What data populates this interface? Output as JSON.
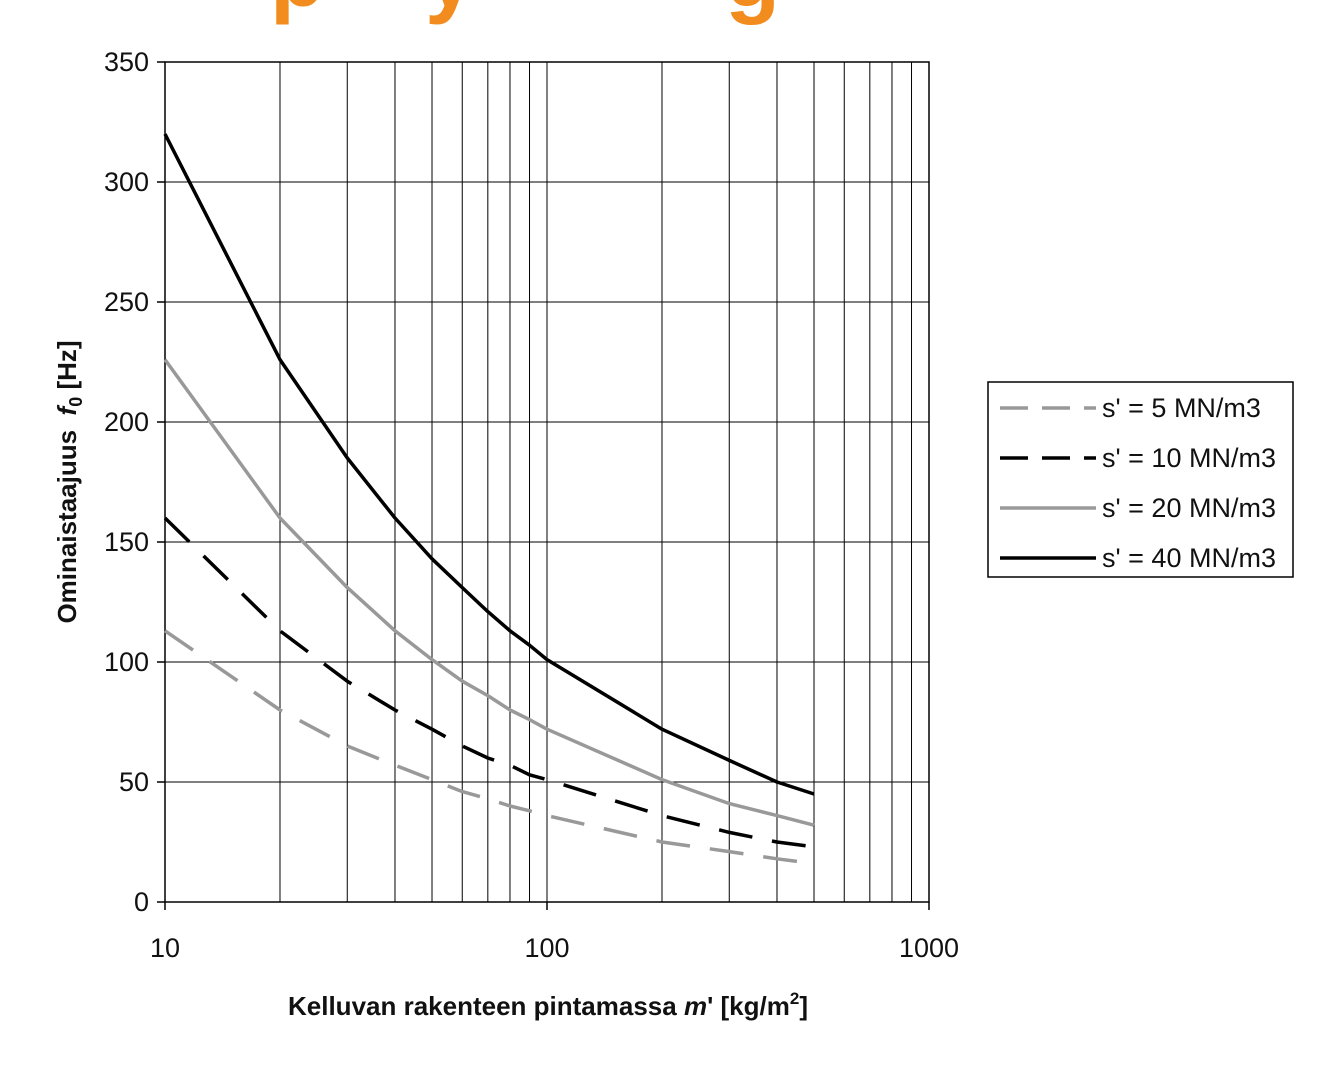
{
  "top_text": "p    y          g",
  "chart_data": {
    "type": "line",
    "x_scale": "log",
    "xlim": [
      10,
      1000
    ],
    "ylim": [
      0,
      350
    ],
    "x_ticks": [
      10,
      100,
      1000
    ],
    "x_tick_labels": [
      "10",
      "100",
      "1000"
    ],
    "y_ticks": [
      0,
      50,
      100,
      150,
      200,
      250,
      300,
      350
    ],
    "y_tick_labels": [
      "0",
      "50",
      "100",
      "150",
      "200",
      "250",
      "300",
      "350"
    ],
    "xlabel": "Kelluvan rakenteen pintamassa m' [kg/m2]",
    "xlabel_main": "Kelluvan rakenteen pintamassa ",
    "xlabel_var": "m",
    "xlabel_prime": "'",
    "xlabel_unit": " [kg/m",
    "xlabel_sup": "2",
    "xlabel_close": "]",
    "ylabel": "Ominaistaajuus f0 [Hz]",
    "ylabel_main": "Ominaistaajuus  ",
    "ylabel_var": "f",
    "ylabel_sub": "0",
    "ylabel_unit": " [Hz]",
    "grid": true,
    "legend_position": "right",
    "x": [
      10,
      20,
      30,
      40,
      50,
      60,
      70,
      80,
      90,
      100,
      200,
      300,
      400,
      500
    ],
    "series": [
      {
        "name": "s' = 5 MN/m3",
        "color": "#999999",
        "dash": "dashed",
        "values": [
          113,
          80,
          65,
          57,
          51,
          46,
          43,
          40,
          38,
          36,
          25,
          21,
          18,
          16
        ]
      },
      {
        "name": "s' = 10 MN/m3",
        "color": "#000000",
        "dash": "dashed",
        "values": [
          160,
          113,
          92,
          80,
          72,
          65,
          60,
          57,
          53,
          51,
          36,
          29,
          25,
          23
        ]
      },
      {
        "name": "s' = 20 MN/m3",
        "color": "#999999",
        "dash": "solid",
        "values": [
          226,
          160,
          131,
          113,
          101,
          92,
          86,
          80,
          76,
          72,
          51,
          41,
          36,
          32
        ]
      },
      {
        "name": "s' = 40 MN/m3",
        "color": "#000000",
        "dash": "solid",
        "values": [
          320,
          226,
          185,
          160,
          143,
          131,
          121,
          113,
          107,
          101,
          72,
          59,
          50,
          45
        ]
      }
    ]
  }
}
